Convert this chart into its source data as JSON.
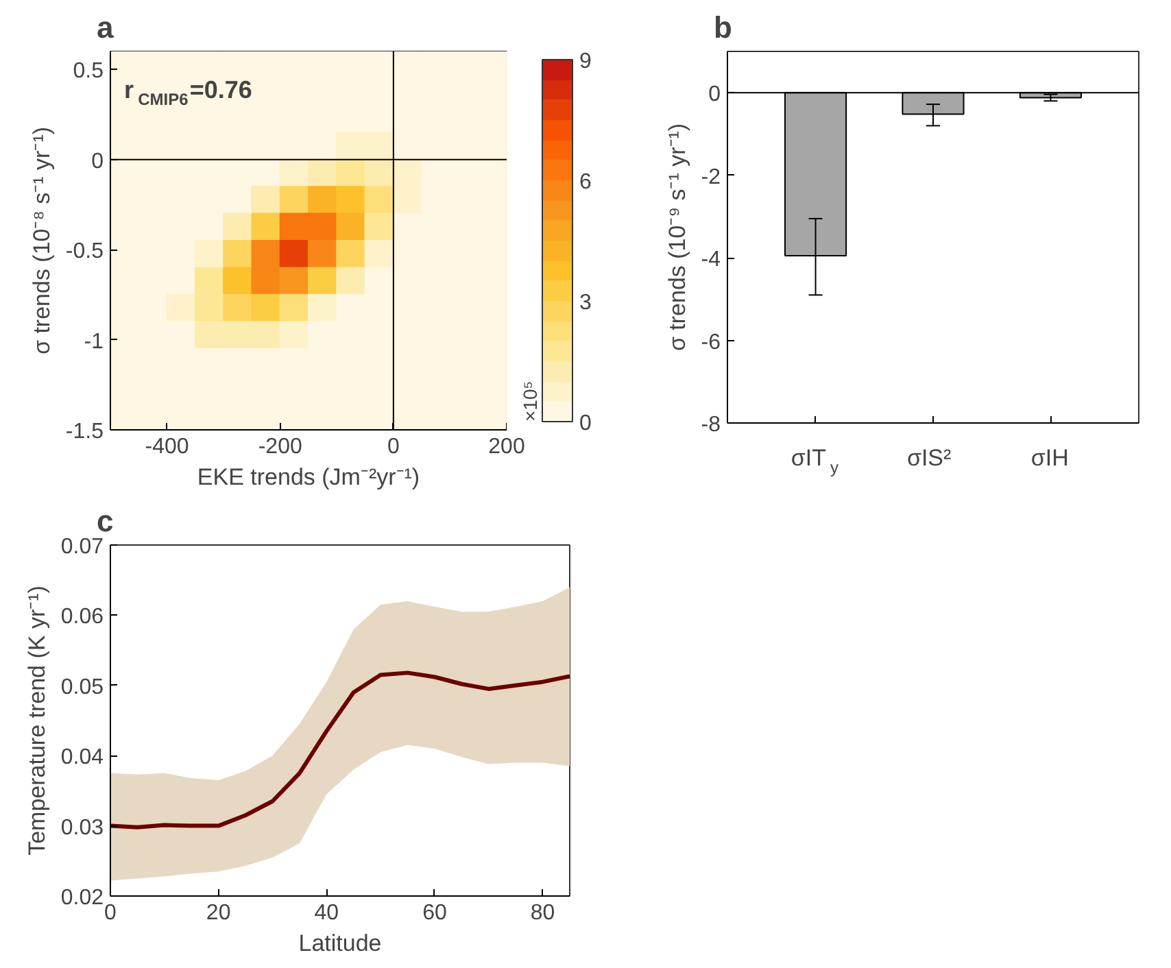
{
  "chart_data": [
    {
      "type": "heatmap",
      "title": "a",
      "xlabel": "EKE trends (Jm⁻²yr⁻¹)",
      "ylabel": "σ trends (10⁻⁸ s⁻¹ yr⁻¹)",
      "clabel": "×10⁵",
      "x": [
        -475,
        -425,
        -375,
        -325,
        -275,
        -225,
        -175,
        -125,
        -75,
        -25,
        25,
        75,
        125,
        175
      ],
      "y": [
        0.525,
        0.375,
        0.225,
        0.075,
        -0.075,
        -0.225,
        -0.375,
        -0.525,
        -0.675,
        -0.825,
        -0.975,
        -1.125,
        -1.275,
        -1.425
      ],
      "cells": [
        [
          0,
          0,
          0,
          0,
          0,
          0,
          0,
          0,
          0,
          0,
          0,
          0,
          0,
          0
        ],
        [
          0,
          0,
          0,
          0,
          0,
          0,
          0,
          0,
          0,
          0,
          0,
          0,
          0,
          0
        ],
        [
          0,
          0,
          0,
          0,
          0,
          0,
          0,
          0,
          0.1,
          0.1,
          0.1,
          0,
          0,
          0
        ],
        [
          0,
          0,
          0,
          0,
          0,
          0,
          0.1,
          0.3,
          0.5,
          0.5,
          0.3,
          0.1,
          0,
          0
        ],
        [
          0,
          0,
          0,
          0,
          0,
          0.2,
          0.7,
          1.4,
          1.8,
          1.4,
          0.6,
          0.2,
          0,
          0
        ],
        [
          0,
          0,
          0,
          0.1,
          0.3,
          1.2,
          2.8,
          4.0,
          3.6,
          2.0,
          0.7,
          0.2,
          0,
          0
        ],
        [
          0,
          0,
          0,
          0.3,
          1.2,
          3.4,
          6.0,
          6.4,
          4.2,
          1.7,
          0.4,
          0.1,
          0,
          0
        ],
        [
          0,
          0,
          0.2,
          0.9,
          2.8,
          5.9,
          7.5,
          5.8,
          2.8,
          0.8,
          0.2,
          0,
          0,
          0
        ],
        [
          0,
          0.1,
          0.4,
          1.6,
          3.8,
          5.7,
          5.3,
          3.1,
          1.1,
          0.2,
          0,
          0,
          0,
          0
        ],
        [
          0,
          0.1,
          0.6,
          1.6,
          2.9,
          3.2,
          2.2,
          0.9,
          0.2,
          0,
          0,
          0,
          0,
          0
        ],
        [
          0,
          0.1,
          0.4,
          1.0,
          1.2,
          1.0,
          0.5,
          0.2,
          0,
          0,
          0,
          0,
          0,
          0
        ],
        [
          0,
          0.1,
          0.2,
          0.3,
          0.3,
          0.2,
          0.1,
          0,
          0,
          0,
          0,
          0,
          0,
          0
        ],
        [
          0,
          0,
          0,
          0,
          0,
          0,
          0,
          0,
          0,
          0,
          0,
          0,
          0,
          0
        ],
        [
          0,
          0,
          0,
          0,
          0,
          0,
          0,
          0,
          0,
          0,
          0,
          0,
          0,
          0
        ]
      ],
      "clim": [
        0,
        9
      ],
      "cticks": [
        0,
        3,
        6,
        9
      ],
      "xlim": [
        -500,
        200
      ],
      "xticks": [
        -400,
        -200,
        0,
        200
      ],
      "ylim": [
        -1.5,
        0.6
      ],
      "yticks": [
        -1.5,
        -1,
        -0.5,
        0,
        0.5
      ],
      "ref_lines": [
        {
          "axis": "x",
          "value": 0,
          "color": "#000000"
        },
        {
          "axis": "y",
          "value": 0,
          "color": "#000000"
        }
      ],
      "annotations": [
        "r$_{CMIP6}$=0.76"
      ]
    },
    {
      "type": "bar",
      "title": "b",
      "ylabel": "σ trends (10⁻⁹ s⁻¹ yr⁻¹)",
      "categories": [
        "σIT$_{y}$",
        "σIS²",
        "σIH"
      ],
      "values": [
        -3.95,
        -0.52,
        -0.12
      ],
      "color": "#a6a6a6",
      "errors": [
        [
          -4.9,
          -3.05
        ],
        [
          -0.8,
          -0.28
        ],
        [
          -0.2,
          -0.04
        ]
      ],
      "ylim": [
        -8,
        1
      ],
      "yticks": [
        -8,
        -6,
        -4,
        -2,
        0
      ],
      "ref_lines": [
        {
          "axis": "y",
          "value": 0,
          "color": "#000000"
        }
      ]
    },
    {
      "type": "line",
      "title": "c",
      "xlabel": "Latitude",
      "ylabel": "Temperature trend (K yr⁻¹)",
      "x": [
        0,
        5,
        10,
        15,
        20,
        25,
        30,
        35,
        40,
        45,
        50,
        55,
        60,
        65,
        70,
        75,
        80,
        85
      ],
      "series": [
        {
          "color": "#6b0000",
          "values": [
            0.03,
            0.0298,
            0.0301,
            0.03,
            0.03,
            0.0315,
            0.0335,
            0.0375,
            0.0435,
            0.049,
            0.0515,
            0.0518,
            0.0512,
            0.0502,
            0.0495,
            0.05,
            0.0505,
            0.0513
          ],
          "lower": [
            0.0222,
            0.0225,
            0.0228,
            0.0232,
            0.0235,
            0.0243,
            0.0255,
            0.0275,
            0.0345,
            0.038,
            0.0405,
            0.0415,
            0.041,
            0.0398,
            0.0388,
            0.039,
            0.039,
            0.0385
          ],
          "upper": [
            0.0375,
            0.0373,
            0.0375,
            0.0368,
            0.0365,
            0.0378,
            0.04,
            0.0445,
            0.0505,
            0.058,
            0.0615,
            0.062,
            0.0612,
            0.0605,
            0.0605,
            0.0612,
            0.062,
            0.064
          ]
        }
      ],
      "xlim": [
        0,
        85
      ],
      "xticks": [
        0,
        20,
        40,
        60,
        80
      ],
      "ylim": [
        0.02,
        0.07
      ],
      "yticks": [
        0.02,
        0.03,
        0.04,
        0.05,
        0.06,
        0.07
      ]
    }
  ]
}
